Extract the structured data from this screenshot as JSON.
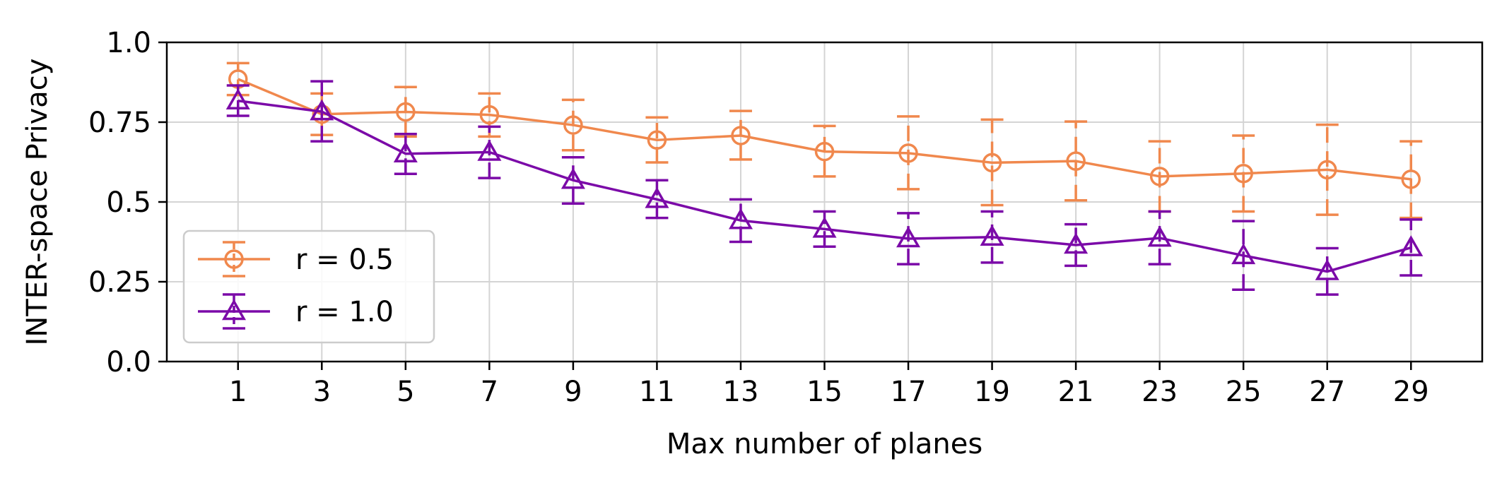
{
  "chart_data": {
    "type": "line",
    "title": "",
    "xlabel": "Max number of planes",
    "ylabel": "INTER-space Privacy",
    "x": [
      1,
      3,
      5,
      7,
      9,
      11,
      13,
      15,
      17,
      19,
      21,
      23,
      25,
      27,
      29
    ],
    "xticks": [
      "1",
      "3",
      "5",
      "7",
      "9",
      "11",
      "13",
      "15",
      "17",
      "19",
      "21",
      "23",
      "25",
      "27",
      "29"
    ],
    "ylim": [
      0,
      1
    ],
    "yticks": [
      0,
      0.25,
      0.5,
      0.75,
      1.0
    ],
    "ytick_labels": [
      "0.0",
      "0.25",
      "0.5",
      "0.75",
      "1.0"
    ],
    "grid": true,
    "legend_position": "lower-left",
    "series": [
      {
        "name": "r = 0.5",
        "color": "#f0884d",
        "marker": "circle",
        "values": [
          0.885,
          0.775,
          0.782,
          0.773,
          0.741,
          0.694,
          0.708,
          0.658,
          0.653,
          0.623,
          0.628,
          0.58,
          0.589,
          0.601,
          0.571
        ],
        "error_low": [
          0.835,
          0.71,
          0.705,
          0.705,
          0.662,
          0.624,
          0.633,
          0.58,
          0.54,
          0.49,
          0.505,
          0.47,
          0.47,
          0.46,
          0.45
        ],
        "error_high": [
          0.935,
          0.84,
          0.86,
          0.84,
          0.82,
          0.765,
          0.785,
          0.738,
          0.768,
          0.758,
          0.752,
          0.69,
          0.708,
          0.742,
          0.69
        ]
      },
      {
        "name": "r = 1.0",
        "color": "#7b0aa8",
        "marker": "triangle",
        "values": [
          0.817,
          0.783,
          0.651,
          0.656,
          0.568,
          0.508,
          0.442,
          0.415,
          0.385,
          0.39,
          0.365,
          0.387,
          0.332,
          0.282,
          0.357
        ],
        "error_low": [
          0.77,
          0.69,
          0.588,
          0.575,
          0.495,
          0.45,
          0.375,
          0.36,
          0.305,
          0.31,
          0.3,
          0.305,
          0.225,
          0.21,
          0.27
        ],
        "error_high": [
          0.865,
          0.878,
          0.713,
          0.736,
          0.64,
          0.568,
          0.508,
          0.47,
          0.465,
          0.47,
          0.43,
          0.47,
          0.44,
          0.355,
          0.445
        ]
      }
    ]
  }
}
